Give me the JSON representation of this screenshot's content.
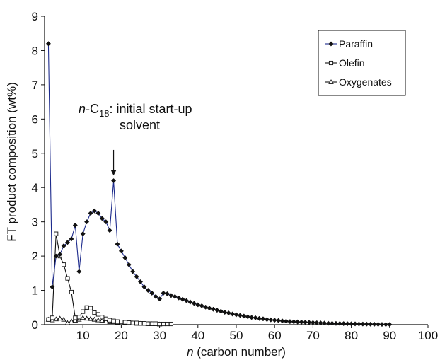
{
  "chart_data": {
    "type": "line",
    "xlabel_var": "n",
    "xlabel_rest": " (carbon number)",
    "ylabel": "FT product composition (wt%)",
    "xlim": [
      0,
      100
    ],
    "ylim": [
      0,
      9
    ],
    "xticks": [
      10,
      20,
      30,
      40,
      50,
      60,
      70,
      80,
      90,
      100
    ],
    "yticks": [
      0,
      1,
      2,
      3,
      4,
      5,
      6,
      7,
      8,
      9
    ],
    "grid": false,
    "legend_position": "top-right",
    "annotation": {
      "prefix": "n",
      "middle": "-C",
      "subscript": "18",
      "line1_rest": ": initial start-up",
      "line2": "solvent",
      "arrow_x": 18,
      "arrow_y_top": 5.1,
      "arrow_y_bottom": 4.35
    },
    "series": [
      {
        "name": "Paraffin",
        "marker": "diamond-filled",
        "color": "#1c2a8c",
        "x": [
          1,
          2,
          3,
          4,
          5,
          6,
          7,
          8,
          9,
          10,
          11,
          12,
          13,
          14,
          15,
          16,
          17,
          18,
          19,
          20,
          21,
          22,
          23,
          24,
          25,
          26,
          27,
          28,
          29,
          30,
          31,
          32,
          33,
          34,
          35,
          36,
          37,
          38,
          39,
          40,
          41,
          42,
          43,
          44,
          45,
          46,
          47,
          48,
          49,
          50,
          51,
          52,
          53,
          54,
          55,
          56,
          57,
          58,
          59,
          60,
          61,
          62,
          63,
          64,
          65,
          66,
          67,
          68,
          69,
          70,
          71,
          72,
          73,
          74,
          75,
          76,
          77,
          78,
          79,
          80,
          81,
          82,
          83,
          84,
          85,
          86,
          87,
          88,
          89,
          90
        ],
        "values": [
          8.2,
          1.1,
          2.0,
          2.05,
          2.3,
          2.4,
          2.5,
          2.9,
          1.55,
          2.65,
          3.0,
          3.25,
          3.32,
          3.25,
          3.1,
          3.0,
          2.75,
          4.2,
          2.35,
          2.15,
          1.95,
          1.75,
          1.55,
          1.4,
          1.25,
          1.1,
          1.0,
          0.92,
          0.82,
          0.75,
          0.92,
          0.9,
          0.85,
          0.82,
          0.78,
          0.74,
          0.7,
          0.66,
          0.62,
          0.58,
          0.55,
          0.51,
          0.48,
          0.45,
          0.42,
          0.39,
          0.36,
          0.34,
          0.31,
          0.29,
          0.27,
          0.25,
          0.23,
          0.21,
          0.2,
          0.18,
          0.17,
          0.15,
          0.14,
          0.13,
          0.12,
          0.11,
          0.1,
          0.09,
          0.085,
          0.08,
          0.075,
          0.07,
          0.065,
          0.06,
          0.055,
          0.05,
          0.045,
          0.04,
          0.038,
          0.035,
          0.033,
          0.03,
          0.028,
          0.025,
          0.023,
          0.02,
          0.018,
          0.016,
          0.014,
          0.012,
          0.01,
          0.008,
          0.006,
          0.005
        ]
      },
      {
        "name": "Olefin",
        "marker": "square-open",
        "color": "#111111",
        "x": [
          1,
          2,
          3,
          4,
          5,
          6,
          7,
          8,
          9,
          10,
          11,
          12,
          13,
          14,
          15,
          16,
          17,
          18,
          19,
          20,
          21,
          22,
          23,
          24,
          25,
          26,
          27,
          28,
          29,
          30,
          31,
          32,
          33
        ],
        "values": [
          0.15,
          0.2,
          2.65,
          2.0,
          1.75,
          1.35,
          0.95,
          0.2,
          0.22,
          0.38,
          0.5,
          0.48,
          0.35,
          0.3,
          0.22,
          0.17,
          0.13,
          0.11,
          0.09,
          0.08,
          0.07,
          0.06,
          0.05,
          0.05,
          0.04,
          0.04,
          0.03,
          0.03,
          0.03,
          0.02,
          0.02,
          0.02,
          0.02
        ]
      },
      {
        "name": "Oxygenates",
        "marker": "triangle-open",
        "color": "#111111",
        "x": [
          1,
          2,
          3,
          4,
          5,
          6,
          7,
          8,
          9,
          10,
          11,
          12,
          13,
          14,
          15,
          16,
          17,
          18,
          19,
          20,
          21,
          22,
          23,
          24,
          25,
          26,
          27,
          28,
          29,
          30
        ],
        "values": [
          0.15,
          0.13,
          0.16,
          0.18,
          0.15,
          0.05,
          0.1,
          0.12,
          0.15,
          0.2,
          0.18,
          0.17,
          0.15,
          0.13,
          0.12,
          0.1,
          0.08,
          0.08,
          0.06,
          0.05,
          0.05,
          0.04,
          0.04,
          0.03,
          0.03,
          0.03,
          0.02,
          0.02,
          0.02,
          0.01
        ]
      }
    ]
  }
}
